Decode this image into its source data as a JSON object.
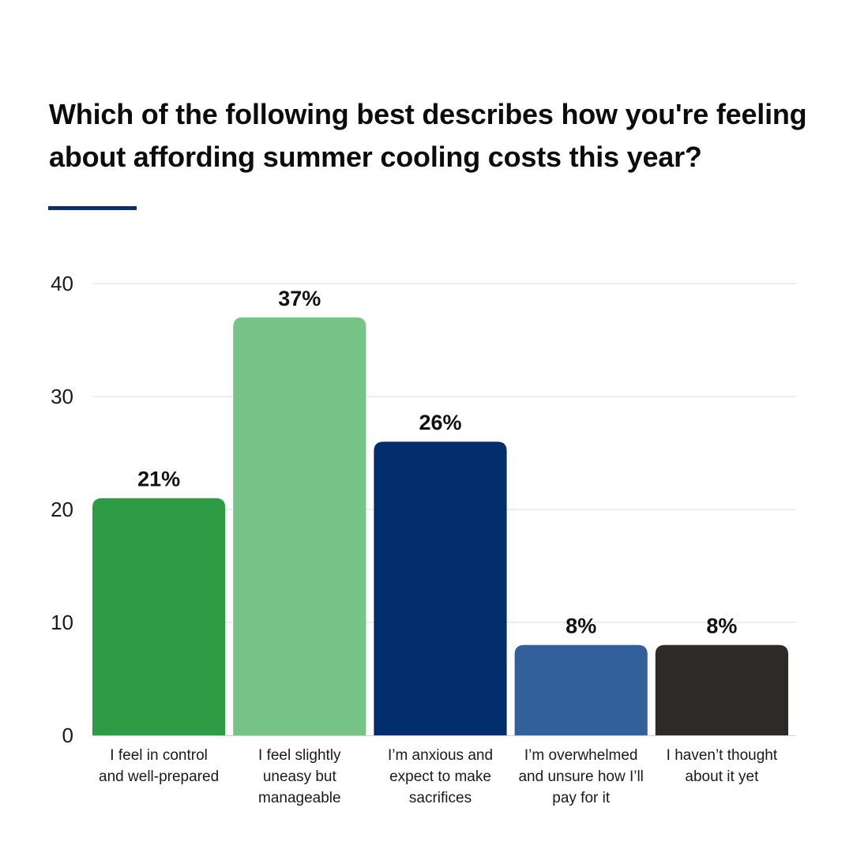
{
  "title": "Which of the following best describes how you're feeling about affording summer cooling costs this year?",
  "colors": {
    "accent_rule": "#0b2f6e",
    "gridline": "#dcdcdc",
    "axis": "#cfcfcf"
  },
  "chart_data": {
    "type": "bar",
    "title": "Which of the following best describes how you're feeling about affording summer cooling costs this year?",
    "xlabel": "",
    "ylabel": "",
    "ylim": [
      0,
      40
    ],
    "yticks": [
      0,
      10,
      20,
      30,
      40
    ],
    "grid": true,
    "legend": "none",
    "categories": [
      [
        "I feel in control",
        "and well-prepared"
      ],
      [
        "I feel slightly",
        "uneasy but",
        "manageable"
      ],
      [
        "I’m anxious and",
        "expect to make",
        "sacrifices"
      ],
      [
        "I’m overwhelmed",
        "and unsure how I’ll",
        "pay for it"
      ],
      [
        "I haven’t thought",
        "about it yet"
      ]
    ],
    "values": [
      21,
      37,
      26,
      8,
      8
    ],
    "value_labels": [
      "21%",
      "37%",
      "26%",
      "8%",
      "8%"
    ],
    "bar_colors": [
      "#2e9b45",
      "#77c488",
      "#032e6e",
      "#31609a",
      "#2d2a28"
    ]
  }
}
